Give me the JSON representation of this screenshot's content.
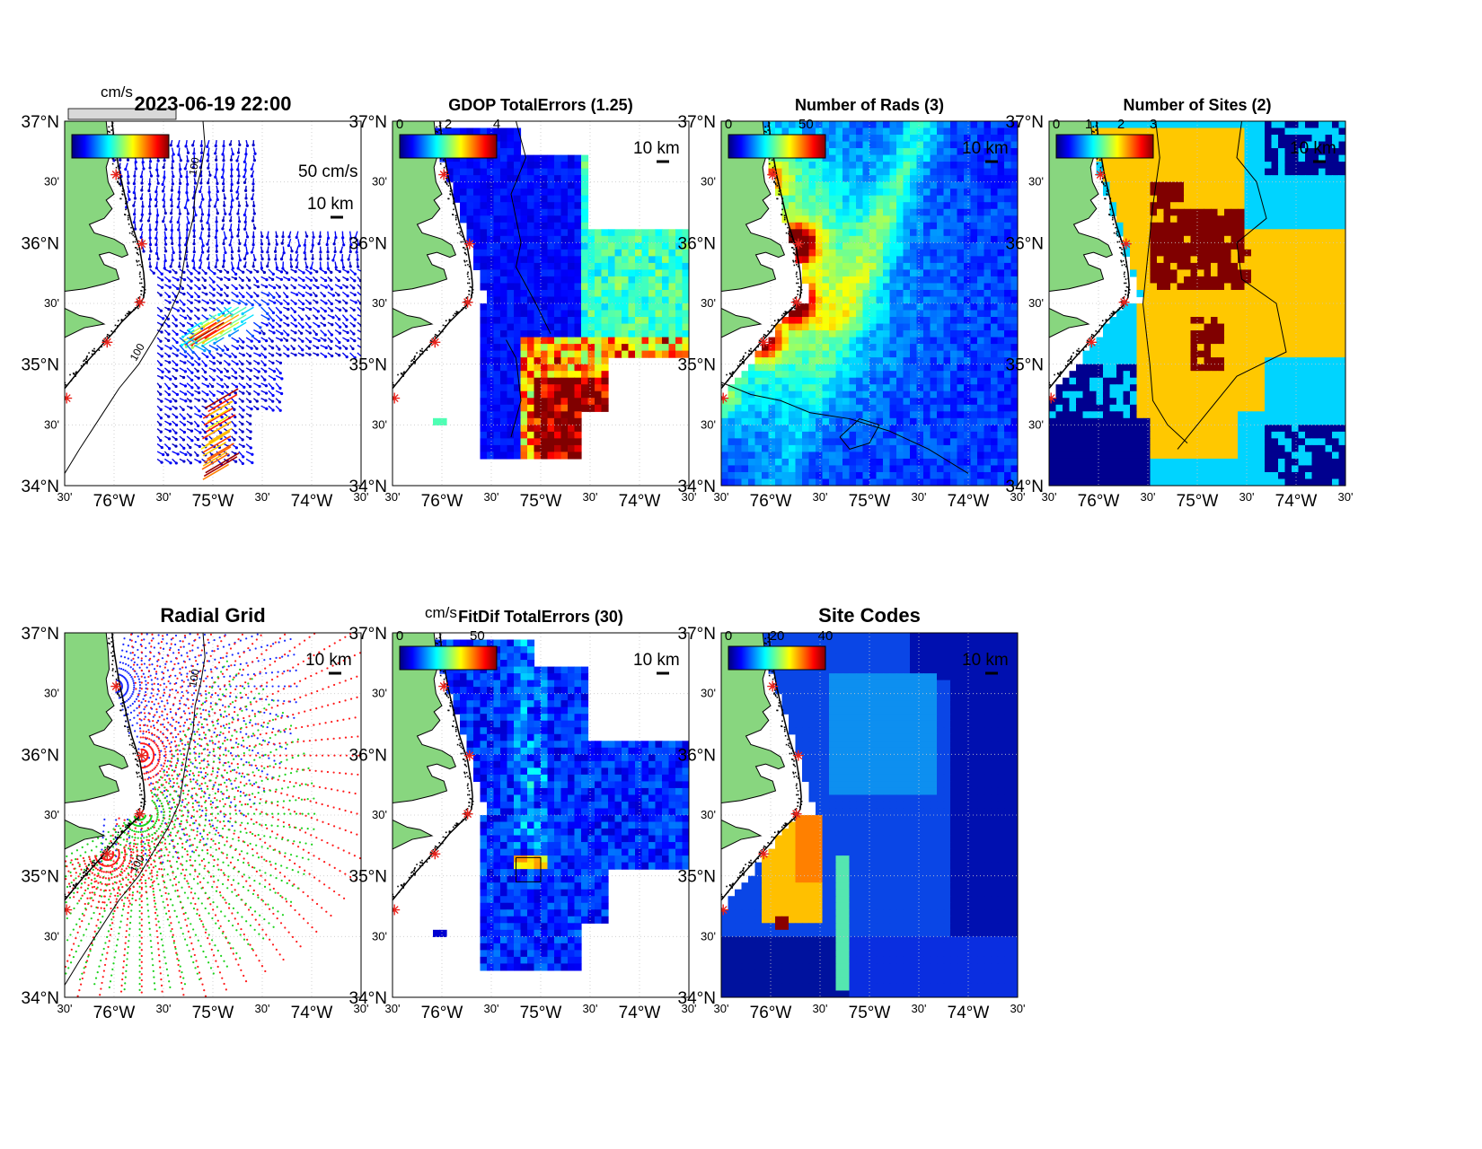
{
  "figure": {
    "timestamp": "2023-06-19 22:00",
    "lat_ticks": [
      "37°N",
      "30'",
      "36°N",
      "30'",
      "35°N",
      "30'",
      "34°N"
    ],
    "lon_ticks": [
      "30'",
      "76°W",
      "30'",
      "75°W",
      "30'",
      "74°W",
      "30'"
    ],
    "scale_bar": "10 km",
    "vector_scale": "50 cm/s",
    "units": "cm/s",
    "depth_contour": "100"
  },
  "panels": [
    {
      "id": "totals",
      "title": "2023-06-19 22:00",
      "colorbar_ticks": [],
      "colorbar_units": "cm/s"
    },
    {
      "id": "gdop",
      "title": "GDOP TotalErrors (1.25)",
      "colorbar_ticks": [
        "0",
        "2",
        "4"
      ],
      "contour_label": "1.25"
    },
    {
      "id": "nrads",
      "title": "Number of Rads (3)",
      "colorbar_ticks": [
        "0",
        "50"
      ],
      "contour_label": "3"
    },
    {
      "id": "nsites",
      "title": "Number of Sites (2)",
      "colorbar_ticks": [
        "0",
        "1",
        "2",
        "3"
      ],
      "contour_label": "2"
    },
    {
      "id": "radgrid",
      "title": "Radial Grid",
      "colorbar_ticks": []
    },
    {
      "id": "fitdif",
      "title": "FitDif TotalErrors (30)",
      "colorbar_ticks": [
        "0",
        "50"
      ],
      "colorbar_units": "cm/s",
      "contour_label": "30"
    },
    {
      "id": "sitecodes",
      "title": "Site Codes",
      "colorbar_ticks": [
        "0",
        "20",
        "40"
      ]
    }
  ],
  "chart_data": {
    "type": "map",
    "projection": "lat-lon",
    "lat_range": [
      34.0,
      37.0
    ],
    "lon_range": [
      -76.5,
      -73.5
    ],
    "colormap": "jet",
    "radar_sites": [
      {
        "lon": -75.98,
        "lat": 36.56
      },
      {
        "lon": -75.72,
        "lat": 35.99
      },
      {
        "lon": -75.74,
        "lat": 35.51
      },
      {
        "lon": -76.07,
        "lat": 35.18
      },
      {
        "lon": -76.48,
        "lat": 34.72
      }
    ],
    "colorbar_ranges": {
      "totals": [
        0,
        100
      ],
      "gdop": [
        0,
        4
      ],
      "nrads": [
        0,
        80
      ],
      "nsites": [
        0,
        3
      ],
      "fitdif": [
        0,
        80
      ],
      "sitecodes": [
        0,
        50
      ]
    },
    "contour_levels": {
      "gdop": 1.25,
      "nrads": 3,
      "nsites": 2,
      "fitdif": 30,
      "bathymetry_m": 100
    }
  },
  "colors": {
    "land": "#88d67f",
    "coast": "#000000",
    "site_marker": "#e8231c",
    "radial_blue": "#1a2bff",
    "radial_red": "#ff1a1a",
    "radial_green": "#1bd21b",
    "nsites_2": "#ffc800",
    "nsites_1": "#00d4ff",
    "nsites_0": "#00008f",
    "nsites_3": "#800000"
  }
}
